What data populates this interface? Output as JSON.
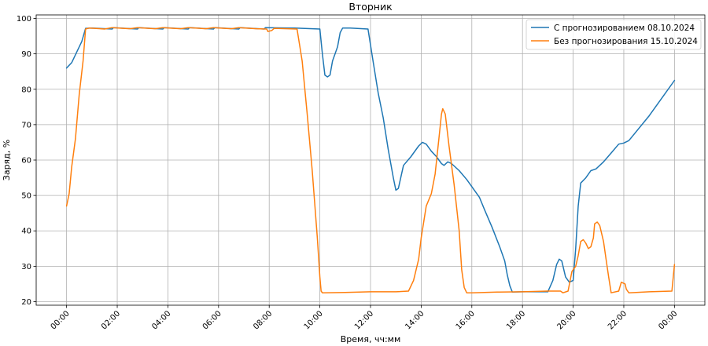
{
  "chart_data": {
    "type": "line",
    "title": "Вторник",
    "xlabel": "Время, чч:мм",
    "ylabel": "Заряд, %",
    "x_ticks": [
      {
        "t": 0,
        "label": "00:00"
      },
      {
        "t": 2,
        "label": "02:00"
      },
      {
        "t": 4,
        "label": "04:00"
      },
      {
        "t": 6,
        "label": "06:00"
      },
      {
        "t": 8,
        "label": "08:00"
      },
      {
        "t": 10,
        "label": "10:00"
      },
      {
        "t": 12,
        "label": "12:00"
      },
      {
        "t": 14,
        "label": "14:00"
      },
      {
        "t": 16,
        "label": "16:00"
      },
      {
        "t": 18,
        "label": "18:00"
      },
      {
        "t": 20,
        "label": "20:00"
      },
      {
        "t": 22,
        "label": "22:00"
      },
      {
        "t": 24,
        "label": "00:00"
      }
    ],
    "y_ticks": [
      20,
      30,
      40,
      50,
      60,
      70,
      80,
      90,
      100
    ],
    "xlim": [
      -1.2,
      25.2
    ],
    "ylim": [
      19,
      101
    ],
    "grid": true,
    "legend_position": "top-right",
    "series": [
      {
        "name": "С прогнозированием 08.10.2024",
        "color": "#1f77b4",
        "points": [
          [
            0.0,
            86.0
          ],
          [
            0.2,
            87.5
          ],
          [
            0.4,
            90.5
          ],
          [
            0.6,
            93.5
          ],
          [
            0.75,
            97.2
          ],
          [
            1.0,
            97.3
          ],
          [
            1.8,
            97.0
          ],
          [
            1.85,
            97.4
          ],
          [
            2.8,
            97.0
          ],
          [
            2.85,
            97.4
          ],
          [
            3.8,
            97.0
          ],
          [
            3.85,
            97.4
          ],
          [
            4.8,
            97.0
          ],
          [
            4.85,
            97.4
          ],
          [
            5.8,
            97.0
          ],
          [
            5.85,
            97.4
          ],
          [
            6.8,
            97.0
          ],
          [
            6.85,
            97.4
          ],
          [
            7.8,
            97.0
          ],
          [
            7.85,
            97.4
          ],
          [
            8.8,
            97.3
          ],
          [
            9.0,
            97.3
          ],
          [
            10.0,
            97.0
          ],
          [
            10.1,
            90.0
          ],
          [
            10.2,
            84.0
          ],
          [
            10.3,
            83.5
          ],
          [
            10.4,
            84.0
          ],
          [
            10.5,
            88.0
          ],
          [
            10.7,
            92.0
          ],
          [
            10.8,
            96.0
          ],
          [
            10.9,
            97.3
          ],
          [
            11.2,
            97.3
          ],
          [
            11.9,
            97.0
          ],
          [
            12.1,
            88.0
          ],
          [
            12.3,
            79.0
          ],
          [
            12.5,
            72.0
          ],
          [
            12.7,
            63.0
          ],
          [
            12.9,
            55.0
          ],
          [
            13.0,
            51.5
          ],
          [
            13.1,
            52.0
          ],
          [
            13.3,
            58.5
          ],
          [
            13.6,
            61.0
          ],
          [
            13.9,
            64.0
          ],
          [
            14.05,
            65.0
          ],
          [
            14.2,
            64.5
          ],
          [
            14.4,
            62.5
          ],
          [
            14.6,
            61.0
          ],
          [
            14.8,
            59.0
          ],
          [
            14.9,
            58.5
          ],
          [
            15.05,
            59.5
          ],
          [
            15.2,
            59.0
          ],
          [
            15.5,
            57.0
          ],
          [
            15.8,
            54.5
          ],
          [
            16.1,
            51.5
          ],
          [
            16.3,
            49.5
          ],
          [
            16.5,
            46.0
          ],
          [
            16.8,
            41.0
          ],
          [
            17.1,
            35.5
          ],
          [
            17.3,
            31.5
          ],
          [
            17.4,
            27.5
          ],
          [
            17.5,
            24.5
          ],
          [
            17.6,
            22.7
          ],
          [
            18.0,
            22.8
          ],
          [
            19.0,
            22.8
          ],
          [
            19.2,
            26.0
          ],
          [
            19.35,
            30.5
          ],
          [
            19.45,
            32.0
          ],
          [
            19.55,
            31.5
          ],
          [
            19.7,
            27.0
          ],
          [
            19.85,
            25.5
          ],
          [
            20.0,
            26.0
          ],
          [
            20.1,
            35.0
          ],
          [
            20.2,
            47.0
          ],
          [
            20.3,
            53.5
          ],
          [
            20.5,
            55.0
          ],
          [
            20.7,
            57.0
          ],
          [
            20.9,
            57.5
          ],
          [
            21.2,
            59.5
          ],
          [
            21.5,
            62.0
          ],
          [
            21.8,
            64.5
          ],
          [
            22.0,
            64.8
          ],
          [
            22.2,
            65.5
          ],
          [
            23.0,
            72.5
          ],
          [
            24.0,
            82.5
          ]
        ]
      },
      {
        "name": "Без прогнозирования 15.10.2024",
        "color": "#ff7f0e",
        "points": [
          [
            0.0,
            47.0
          ],
          [
            0.1,
            50.5
          ],
          [
            0.2,
            58.0
          ],
          [
            0.35,
            66.0
          ],
          [
            0.5,
            78.5
          ],
          [
            0.65,
            88.0
          ],
          [
            0.75,
            97.0
          ],
          [
            0.9,
            97.3
          ],
          [
            1.5,
            97.0
          ],
          [
            1.8,
            97.4
          ],
          [
            2.5,
            97.1
          ],
          [
            2.8,
            97.4
          ],
          [
            3.5,
            97.1
          ],
          [
            3.8,
            97.4
          ],
          [
            4.5,
            97.1
          ],
          [
            4.8,
            97.4
          ],
          [
            5.5,
            97.1
          ],
          [
            5.8,
            97.4
          ],
          [
            6.5,
            97.1
          ],
          [
            6.8,
            97.4
          ],
          [
            7.5,
            97.1
          ],
          [
            7.9,
            97.0
          ],
          [
            7.95,
            96.3
          ],
          [
            8.1,
            96.6
          ],
          [
            8.2,
            97.2
          ],
          [
            9.1,
            97.0
          ],
          [
            9.3,
            88.0
          ],
          [
            9.5,
            73.0
          ],
          [
            9.7,
            57.0
          ],
          [
            9.9,
            38.0
          ],
          [
            10.0,
            27.0
          ],
          [
            10.05,
            23.0
          ],
          [
            10.1,
            22.5
          ],
          [
            11.0,
            22.6
          ],
          [
            12.0,
            22.8
          ],
          [
            13.0,
            22.8
          ],
          [
            13.5,
            23.0
          ],
          [
            13.7,
            26.0
          ],
          [
            13.9,
            32.0
          ],
          [
            14.0,
            38.0
          ],
          [
            14.2,
            47.0
          ],
          [
            14.4,
            50.5
          ],
          [
            14.55,
            56.0
          ],
          [
            14.7,
            66.0
          ],
          [
            14.8,
            73.0
          ],
          [
            14.85,
            74.5
          ],
          [
            14.95,
            73.0
          ],
          [
            15.1,
            64.0
          ],
          [
            15.3,
            53.0
          ],
          [
            15.5,
            40.0
          ],
          [
            15.6,
            29.0
          ],
          [
            15.7,
            24.0
          ],
          [
            15.8,
            22.5
          ],
          [
            16.0,
            22.5
          ],
          [
            17.0,
            22.7
          ],
          [
            18.0,
            22.8
          ],
          [
            19.0,
            23.0
          ],
          [
            19.5,
            23.0
          ],
          [
            19.6,
            22.5
          ],
          [
            19.8,
            23.0
          ],
          [
            19.95,
            28.5
          ],
          [
            20.1,
            30.0
          ],
          [
            20.2,
            33.0
          ],
          [
            20.3,
            37.0
          ],
          [
            20.4,
            37.5
          ],
          [
            20.5,
            36.5
          ],
          [
            20.6,
            35.0
          ],
          [
            20.7,
            35.5
          ],
          [
            20.8,
            38.0
          ],
          [
            20.85,
            42.0
          ],
          [
            20.95,
            42.5
          ],
          [
            21.05,
            41.5
          ],
          [
            21.2,
            37.0
          ],
          [
            21.3,
            32.0
          ],
          [
            21.4,
            27.0
          ],
          [
            21.5,
            22.5
          ],
          [
            21.8,
            23.0
          ],
          [
            21.9,
            25.5
          ],
          [
            22.05,
            25.0
          ],
          [
            22.1,
            23.5
          ],
          [
            22.2,
            22.5
          ],
          [
            23.0,
            22.8
          ],
          [
            23.9,
            23.0
          ],
          [
            24.0,
            30.5
          ]
        ]
      }
    ]
  }
}
